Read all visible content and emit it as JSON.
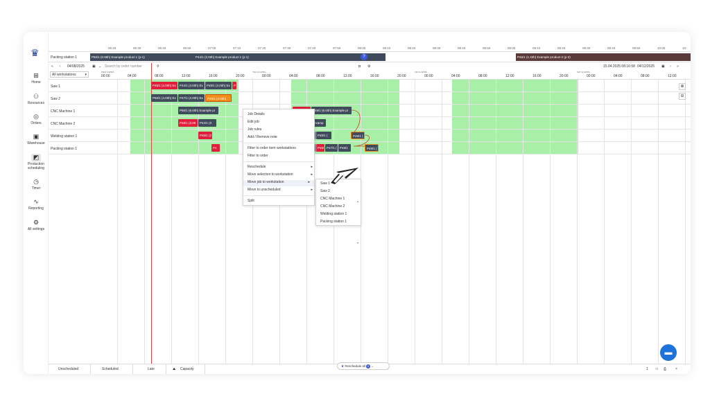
{
  "sidebar": {
    "logo_icon": "crown-logo-icon",
    "items": [
      {
        "label": "Home",
        "icon": "⊞"
      },
      {
        "label": "Resources",
        "icon": "⚇"
      },
      {
        "label": "Orders",
        "icon": "◎"
      },
      {
        "label": "Warehouse",
        "icon": "▣"
      },
      {
        "label": "Production scheduling",
        "icon": "◩"
      },
      {
        "label": "Timer",
        "icon": "◷"
      },
      {
        "label": "Reporting",
        "icon": "∿"
      },
      {
        "label": "All settings",
        "icon": "⚙"
      }
    ]
  },
  "time_ticks": [
    "06:20",
    "06:30",
    "06:40",
    "06:50",
    "07:00",
    "07:10",
    "07:20",
    "07:30",
    "07:40",
    "07:50",
    "08:00",
    "08:10",
    "08:20",
    "08:30",
    "08:40",
    "08:50",
    "09:00",
    "09:10",
    "09:20",
    "09:30",
    "09:40",
    "09:50",
    "10:00",
    "10:"
  ],
  "packing_row": {
    "label": "Packing station 1",
    "bars": [
      {
        "text": "P50/1 (0.98h) Example product 1 (p-1)",
        "color": "#3f4a5a"
      },
      {
        "text": "P44/1 (2.00h) Example product 1 (p-1)",
        "color": "#3f4a5a"
      },
      {
        "text": "P46/1 (1.33h) Example product 2 (p-2)",
        "color": "#5b3a3a"
      }
    ],
    "circle": "?"
  },
  "controls": {
    "prev_all": "«",
    "prev": "‹",
    "date": "04/08/2025",
    "search_placeholder": "Search by order number",
    "search_icon": "search-icon",
    "right_timestamp": "15.04.2025 08:16:58",
    "right_date": "04/12/2025",
    "next": "›",
    "next_all": "»"
  },
  "date_header": {
    "select_label": "All workstations",
    "hours": [
      "00:00",
      "04:00",
      "08:00",
      "12:00",
      "16:00",
      "20:00",
      "00:00",
      "04:00",
      "08:00",
      "12:00",
      "16:00",
      "20:00",
      "00:00",
      "04:00",
      "08:00",
      "12:00",
      "16:00",
      "20:00",
      "00:00",
      "04:00",
      "08:00",
      "12:00"
    ],
    "days": [
      "WED 9 APRIL",
      "THU 10 APRIL",
      "FRI 11 APRIL",
      "SAT 12 APRIL"
    ]
  },
  "rows": [
    {
      "label": "Saw 1"
    },
    {
      "label": "Saw 2"
    },
    {
      "label": "CNC Machine 1"
    },
    {
      "label": "CNC Machine 2"
    },
    {
      "label": "Welding station 1"
    },
    {
      "label": "Packing station 1"
    }
  ],
  "jobs": {
    "saw1": [
      "P45/1 (4.00h) Ex",
      "P44/1 (4.00h) Ex",
      "P48/1 (4.00h) Ex",
      "P"
    ],
    "saw2": [
      "P50/1 (4.00h) Ex",
      "P47/1 (4.00h) Ex",
      "P49/1 (4.00h)"
    ],
    "cnc1_left": [
      "P50/1 (6.00h) Example pr"
    ],
    "cnc1_right": [
      "P45/1 (2.00)",
      "P49/1 (6.00h) Example pr"
    ],
    "cnc2_left": [
      "P46/1 (3.00",
      "P44/1 (3"
    ],
    "cnc2_right": [
      "P48/1 (4.98h) Examp"
    ],
    "weld_left": [
      "P45/1 (2"
    ],
    "weld_right": [
      "P4",
      "P47/1 (",
      "P48/1 (",
      "P49/1 ("
    ],
    "pack_left": [
      "P4"
    ],
    "pack_right": [
      "P5",
      "P44/1 (",
      "P46/",
      "P47/1 (",
      "P48/1",
      "P49/1 ("
    ]
  },
  "context_menu": {
    "items": [
      "Job Details",
      "Edit job",
      "Job rules",
      "Add / Remove note",
      "Filter to order item workstations",
      "Filter to order",
      "Reschedule",
      "Move selection to workstation",
      "Move job to workstation",
      "Move to unscheduled",
      "Split"
    ]
  },
  "submenu": {
    "items": [
      "Saw 1",
      "Saw 2",
      "CNC Machine 1",
      "CNC Machine 2",
      "Welding station 1",
      "Packing station 1"
    ]
  },
  "bottom": {
    "tabs": [
      "Unscheduled",
      "Scheduled",
      "Late",
      "Capacity"
    ],
    "reschedule_label": "Reschedule all",
    "reschedule_count": "0",
    "right_value": "1"
  },
  "colors": {
    "accent": "#1f3b8f",
    "capacity_green": "#a8f0a8",
    "late_red": "#e01e3c",
    "selected_orange": "#f28c1a",
    "job_dark": "#3f4a5a"
  }
}
